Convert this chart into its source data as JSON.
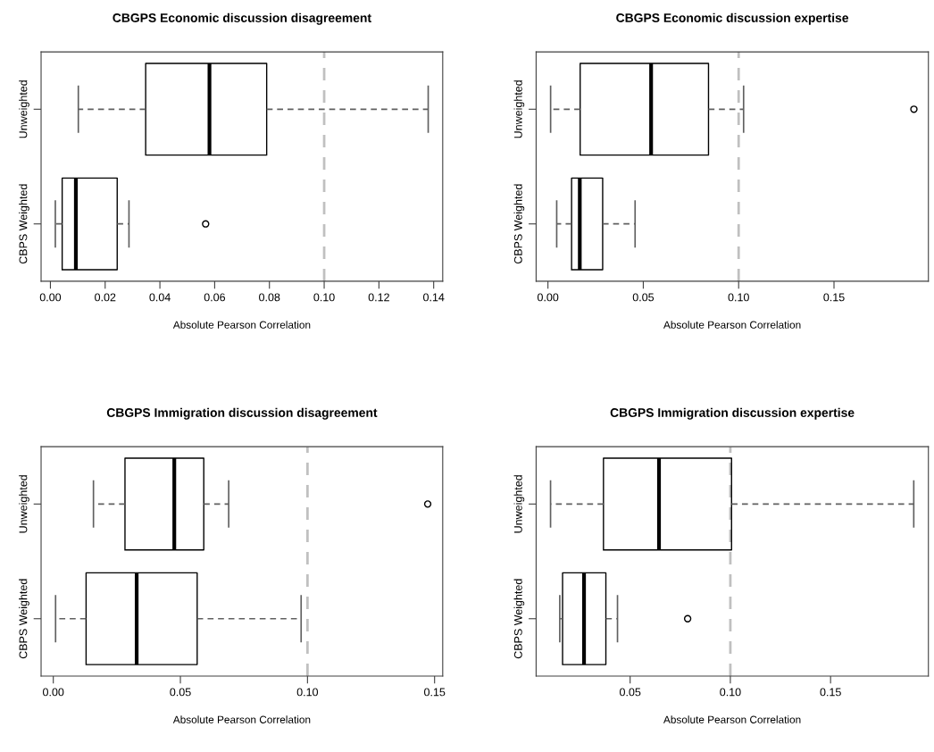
{
  "chart_data": [
    {
      "type": "box",
      "title": "CBGPS Economic discussion disagreement",
      "xlabel": "Absolute Pearson Correlation",
      "orientation": "horizontal",
      "categories": [
        "Unweighted",
        "CBPS Weighted"
      ],
      "boxes": [
        {
          "low": 0.0102,
          "q1": 0.0348,
          "median": 0.0581,
          "q3": 0.079,
          "high": 0.138
        },
        {
          "low": 0.0018,
          "q1": 0.0043,
          "median": 0.0093,
          "q3": 0.0244,
          "high": 0.0287,
          "outliers": [
            0.0567
          ]
        }
      ],
      "xlim": [
        -0.0034,
        0.1433
      ],
      "xticks": [
        {
          "value": 0,
          "label": "0.00"
        },
        {
          "value": 0.02,
          "label": "0.02"
        },
        {
          "value": 0.04,
          "label": "0.04"
        },
        {
          "value": 0.06,
          "label": "0.06"
        },
        {
          "value": 0.08,
          "label": "0.08"
        },
        {
          "value": 0.1,
          "label": "0.10"
        },
        {
          "value": 0.12,
          "label": "0.12"
        },
        {
          "value": 0.14,
          "label": "0.14"
        }
      ],
      "ref_lines": [
        {
          "axis": "x",
          "value": 0.1,
          "color": "#c0c0c0",
          "line_style": "dashed"
        }
      ],
      "grid": false
    },
    {
      "type": "box",
      "title": "CBGPS Economic discussion expertise",
      "xlabel": "Absolute Pearson Correlation",
      "orientation": "horizontal",
      "categories": [
        "Unweighted",
        "CBPS Weighted"
      ],
      "boxes": [
        {
          "low": 0.0014,
          "q1": 0.0169,
          "median": 0.0541,
          "q3": 0.0842,
          "high": 0.1026,
          "outliers": [
            0.1919
          ]
        },
        {
          "low": 0.0046,
          "q1": 0.0124,
          "median": 0.0167,
          "q3": 0.0287,
          "high": 0.0457
        }
      ],
      "xlim": [
        -0.0062,
        0.1995
      ],
      "xticks": [
        {
          "value": 0,
          "label": "0.00"
        },
        {
          "value": 0.05,
          "label": "0.05"
        },
        {
          "value": 0.1,
          "label": "0.10"
        },
        {
          "value": 0.15,
          "label": "0.15"
        }
      ],
      "ref_lines": [
        {
          "axis": "x",
          "value": 0.1,
          "color": "#c0c0c0",
          "line_style": "dashed"
        }
      ],
      "grid": false
    },
    {
      "type": "box",
      "title": "CBGPS Immigration discussion disagreement",
      "xlabel": "Absolute Pearson Correlation",
      "orientation": "horizontal",
      "categories": [
        "Unweighted",
        "CBPS Weighted"
      ],
      "boxes": [
        {
          "low": 0.0158,
          "q1": 0.0282,
          "median": 0.0476,
          "q3": 0.0592,
          "high": 0.069,
          "outliers": [
            0.1473
          ]
        },
        {
          "low": 0.0009,
          "q1": 0.0129,
          "median": 0.0328,
          "q3": 0.0566,
          "high": 0.0975
        }
      ],
      "xlim": [
        -0.0048,
        0.1532
      ],
      "xticks": [
        {
          "value": 0,
          "label": "0.00"
        },
        {
          "value": 0.05,
          "label": "0.05"
        },
        {
          "value": 0.1,
          "label": "0.10"
        },
        {
          "value": 0.15,
          "label": "0.15"
        }
      ],
      "ref_lines": [
        {
          "axis": "x",
          "value": 0.1,
          "color": "#c0c0c0",
          "line_style": "dashed"
        }
      ],
      "grid": false
    },
    {
      "type": "box",
      "title": "CBGPS Immigration discussion expertise",
      "xlabel": "Absolute Pearson Correlation",
      "orientation": "horizontal",
      "categories": [
        "Unweighted",
        "CBPS Weighted"
      ],
      "boxes": [
        {
          "low": 0.0103,
          "q1": 0.0367,
          "median": 0.0644,
          "q3": 0.1006,
          "high": 0.1915
        },
        {
          "low": 0.0149,
          "q1": 0.0163,
          "median": 0.027,
          "q3": 0.0379,
          "high": 0.0437,
          "outliers": [
            0.0787
          ]
        }
      ],
      "xlim": [
        0.0031,
        0.1988
      ],
      "xticks": [
        {
          "value": 0.05,
          "label": "0.05"
        },
        {
          "value": 0.1,
          "label": "0.10"
        },
        {
          "value": 0.15,
          "label": "0.15"
        }
      ],
      "ref_lines": [
        {
          "axis": "x",
          "value": 0.1,
          "color": "#c0c0c0",
          "line_style": "dashed"
        }
      ],
      "grid": false
    }
  ]
}
